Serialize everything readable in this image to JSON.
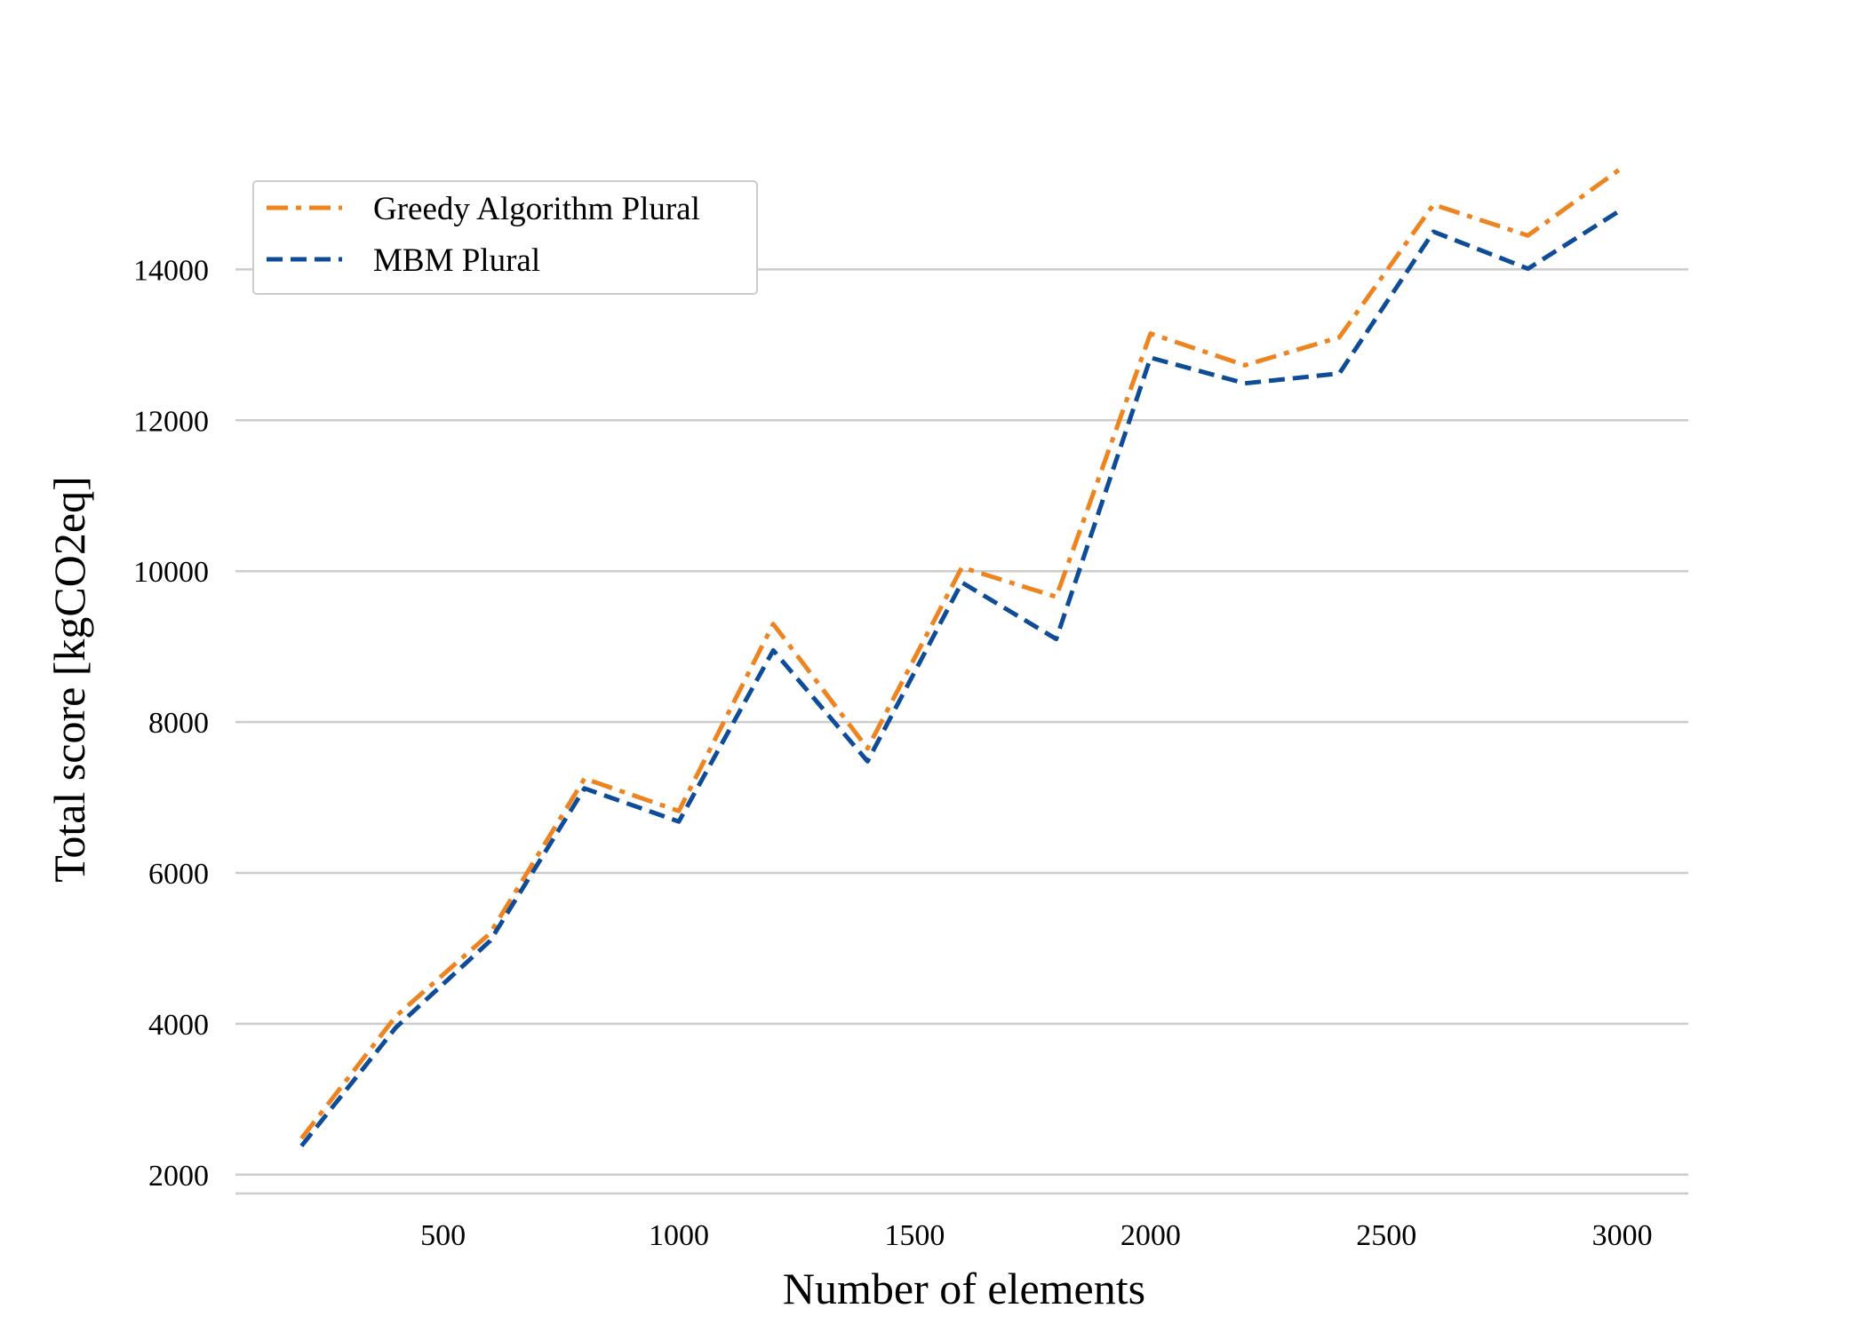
{
  "chart_data": {
    "type": "line",
    "title": "",
    "xlabel": "Number of elements",
    "ylabel": "Total score [kgCO2eq]",
    "xlim": [
      60,
      3140
    ],
    "ylim": [
      1750,
      15700
    ],
    "x_ticks": [
      500,
      1000,
      1500,
      2000,
      2500,
      3000
    ],
    "y_ticks": [
      2000,
      4000,
      6000,
      8000,
      10000,
      12000,
      14000
    ],
    "grid": "horizontal",
    "legend_position": "top-left",
    "x": [
      200,
      400,
      600,
      800,
      1000,
      1200,
      1400,
      1600,
      1800,
      2000,
      2200,
      2400,
      2600,
      2800,
      3000
    ],
    "series": [
      {
        "name": "Greedy Algorithm Plural",
        "color": "#ee8420",
        "dash": "dash-dot",
        "values": [
          2480,
          4100,
          5200,
          7250,
          6820,
          9300,
          7650,
          10050,
          9660,
          13150,
          12730,
          13100,
          14860,
          14450,
          15350
        ]
      },
      {
        "name": "MBM Plural",
        "color": "#0f4c97",
        "dash": "dashed",
        "values": [
          2380,
          3950,
          5100,
          7120,
          6680,
          8950,
          7480,
          9850,
          9100,
          12830,
          12490,
          12620,
          14500,
          14010,
          14800
        ]
      }
    ]
  }
}
